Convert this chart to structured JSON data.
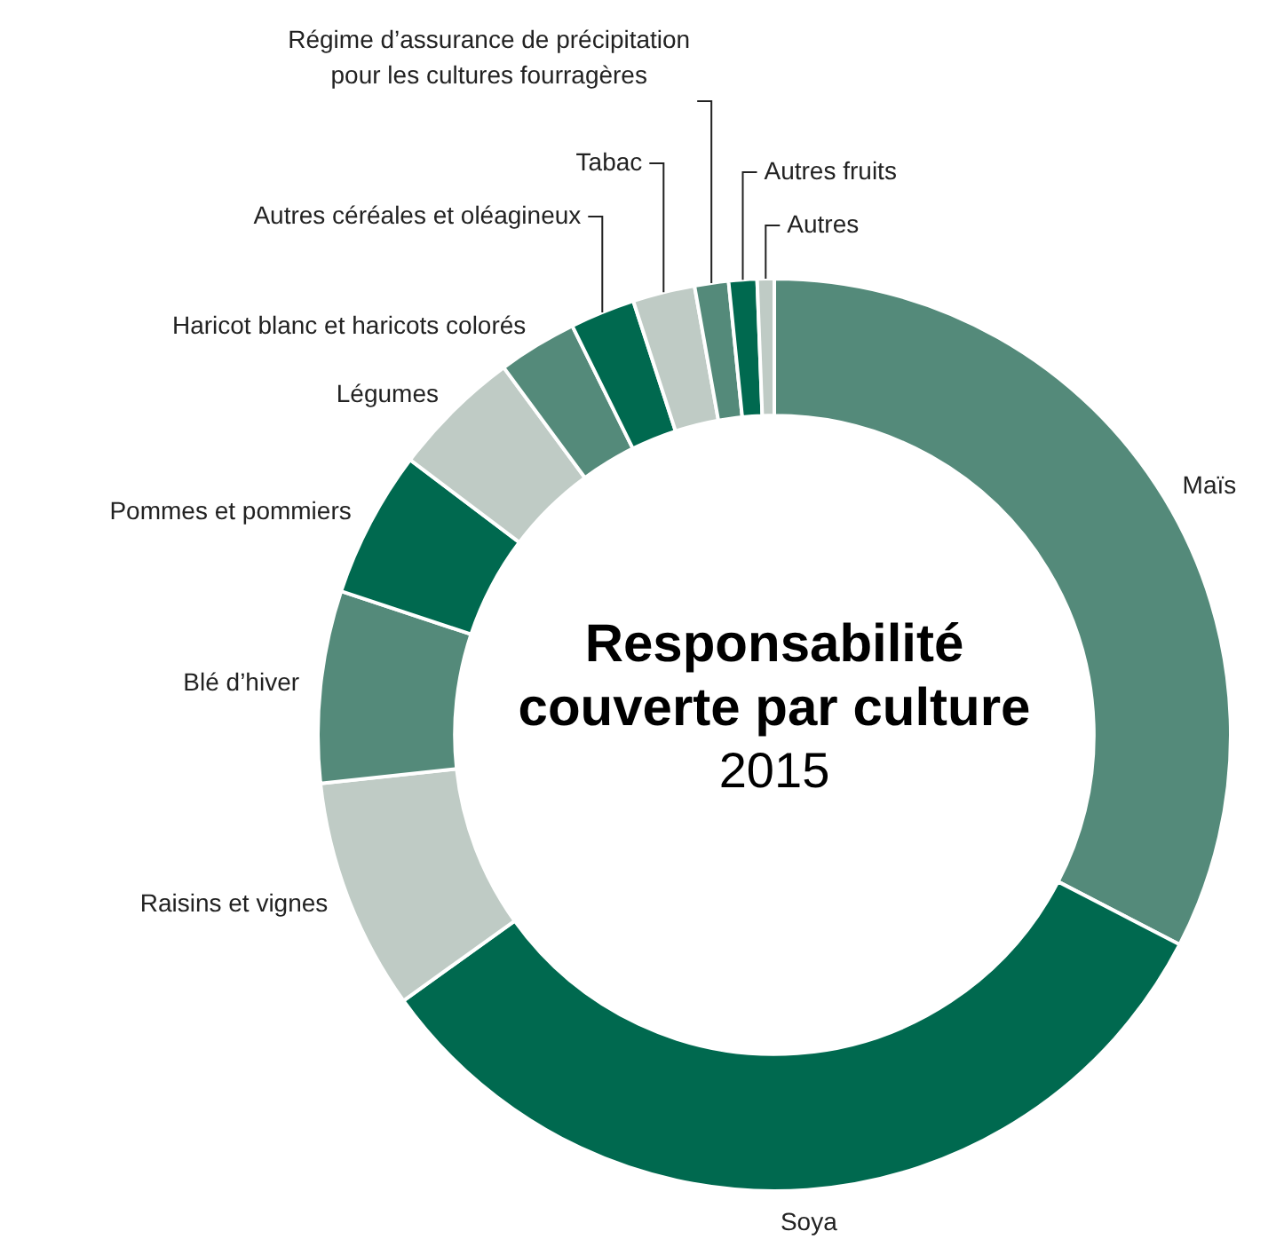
{
  "chart_data": {
    "type": "donut",
    "title": "Responsabilité couverte par culture",
    "subtitle": "2015",
    "categories": [
      "Maïs",
      "Soya",
      "Raisins et vignes",
      "Blé d’hiver",
      "Pommes et pommiers",
      "Légumes",
      "Haricot blanc et haricots colorés",
      "Autres céréales et oléagineux",
      "Tabac",
      "Régime d’assurance de précipitation pour les cultures fourragères",
      "Autres fruits",
      "Autres"
    ],
    "values": [
      32.6,
      32.5,
      8.2,
      6.8,
      5.2,
      4.6,
      2.8,
      2.3,
      2.2,
      1.2,
      1.0,
      0.6
    ],
    "colors": [
      "#548a7a",
      "#00694f",
      "#bfcbc5",
      "#548a7a",
      "#00694f",
      "#bfcbc5",
      "#548a7a",
      "#00694f",
      "#bfcbc5",
      "#548a7a",
      "#00694f",
      "#bfcbc5"
    ],
    "legend": false
  }
}
